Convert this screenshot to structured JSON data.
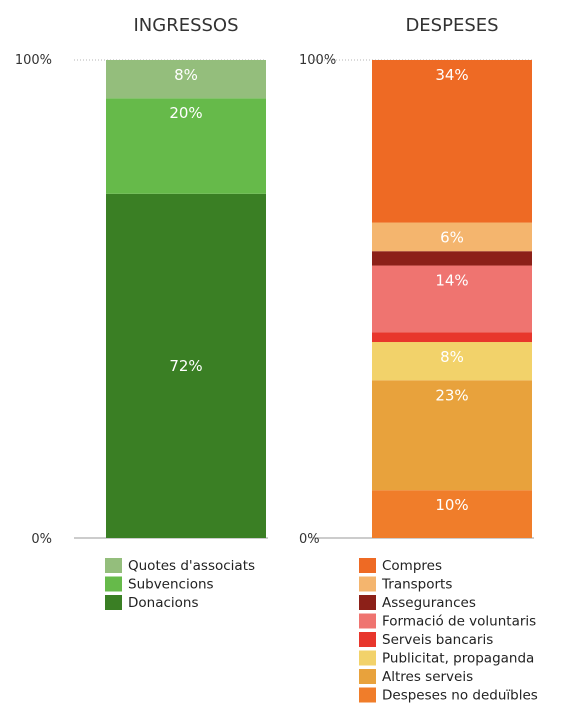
{
  "chart_data": [
    {
      "type": "bar",
      "stacked": true,
      "normalized": true,
      "title": "INGRESSOS",
      "y_ticks": [
        "100%",
        "0%"
      ],
      "ylim": [
        0,
        100
      ],
      "unit": "%",
      "series": [
        {
          "name": "Donacions",
          "value": 72,
          "label": "72%",
          "color": "#3a7f24"
        },
        {
          "name": "Subvencions",
          "value": 20,
          "label": "20%",
          "color": "#66ba4a"
        },
        {
          "name": "Quotes d'associats",
          "value": 8,
          "label": "8%",
          "color": "#94be7c"
        }
      ],
      "legend": [
        "Quotes d'associats",
        "Subvencions",
        "Donacions"
      ],
      "legend_placement": "bottom"
    },
    {
      "type": "bar",
      "stacked": true,
      "normalized": true,
      "title": "DESPESES",
      "y_ticks": [
        "100%",
        "0%"
      ],
      "ylim": [
        0,
        100
      ],
      "unit": "%",
      "series": [
        {
          "name": "Despeses no deduïbles",
          "value": 10,
          "label": "10%",
          "color": "#f07d2a"
        },
        {
          "name": "Altres serveis",
          "value": 23,
          "label": "23%",
          "color": "#e8a23c"
        },
        {
          "name": "Publicitat, propaganda",
          "value": 8,
          "label": "8%",
          "color": "#f2d26a"
        },
        {
          "name": "Serveis bancaris",
          "value": 2,
          "label": "",
          "color": "#e8362c"
        },
        {
          "name": "Formació de voluntaris",
          "value": 14,
          "label": "14%",
          "color": "#ef7470"
        },
        {
          "name": "Assegurances",
          "value": 3,
          "label": "",
          "color": "#8c2018"
        },
        {
          "name": "Transports",
          "value": 6,
          "label": "6%",
          "color": "#f4b56e"
        },
        {
          "name": "Compres",
          "value": 34,
          "label": "34%",
          "color": "#ee6a24"
        }
      ],
      "legend": [
        "Compres",
        "Transports",
        "Assegurances",
        "Formació de voluntaris",
        "Serveis bancaris",
        "Publicitat, propaganda",
        "Altres serveis",
        "Despeses no deduïbles"
      ],
      "legend_placement": "bottom"
    }
  ]
}
